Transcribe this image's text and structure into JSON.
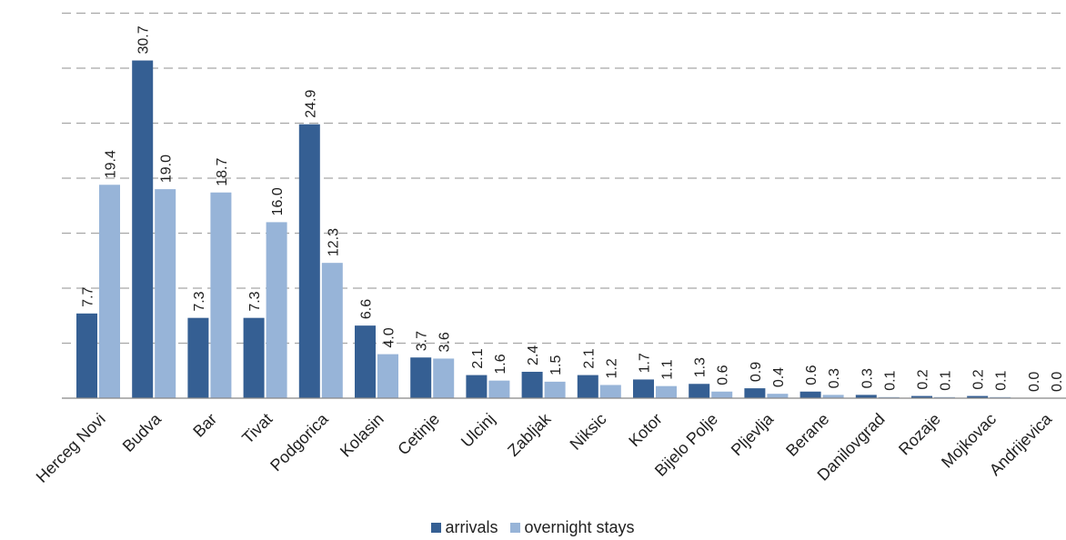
{
  "chart_data": {
    "type": "bar",
    "categories": [
      "Herceg Novi",
      "Budva",
      "Bar",
      "Tivat",
      "Podgorica",
      "Kolasin",
      "Cetinje",
      "Ulcinj",
      "Zabljak",
      "Niksic",
      "Kotor",
      "Bijelo Polje",
      "Pljevlja",
      "Berane",
      "Danilovgrad",
      "Rozaje",
      "Mojkovac",
      "Andrijevica"
    ],
    "series": [
      {
        "name": "arrivals",
        "color": "#355f93",
        "values": [
          7.7,
          30.7,
          7.3,
          7.3,
          24.9,
          6.6,
          3.7,
          2.1,
          2.4,
          2.1,
          1.7,
          1.3,
          0.9,
          0.6,
          0.3,
          0.2,
          0.2,
          0.0
        ],
        "labels": [
          "7.7",
          "30.7",
          "7.3",
          "7.3",
          "24.9",
          "6.6",
          "3.7",
          "2.1",
          "2.4",
          "2.1",
          "1.7",
          "1.3",
          "0.9",
          "0.6",
          "0.3",
          "0.2",
          "0.2",
          "0.0"
        ]
      },
      {
        "name": "overnight stays",
        "color": "#97b4d8",
        "values": [
          19.4,
          19.0,
          18.7,
          16.0,
          12.3,
          4.0,
          3.6,
          1.6,
          1.5,
          1.2,
          1.1,
          0.6,
          0.4,
          0.3,
          0.1,
          0.1,
          0.1,
          0.0
        ],
        "labels": [
          "19.4",
          "19.0",
          "18.7",
          "16.0",
          "12.3",
          "4.0",
          "3.6",
          "1.6",
          "1.5",
          "1.2",
          "1.1",
          "0.6",
          "0.4",
          "0.3",
          "0.1",
          "0.1",
          "0.1",
          "0.0"
        ]
      }
    ],
    "ylim": [
      0,
      35
    ],
    "grid": true,
    "grid_style": "dashed",
    "legend_position": "bottom-center"
  }
}
